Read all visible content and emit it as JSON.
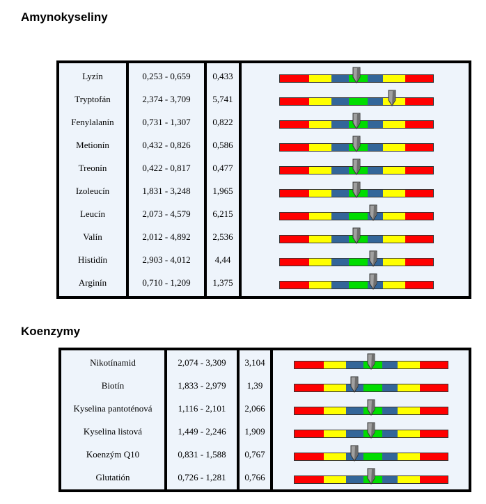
{
  "sections": [
    {
      "title": "Amynokyseliny",
      "rows": [
        {
          "name": "Lyzín",
          "range": "0,253 - 0,659",
          "value": "0,433",
          "marker_pos": 0.5
        },
        {
          "name": "Tryptofán",
          "range": "2,374 - 3,709",
          "value": "5,741",
          "marker_pos": 0.73
        },
        {
          "name": "Fenylalanín",
          "range": "0,731 - 1,307",
          "value": "0,822",
          "marker_pos": 0.5
        },
        {
          "name": "Metionín",
          "range": "0,432 - 0,826",
          "value": "0,586",
          "marker_pos": 0.5
        },
        {
          "name": "Treonín",
          "range": "0,422 - 0,817",
          "value": "0,477",
          "marker_pos": 0.5
        },
        {
          "name": "Izoleucín",
          "range": "1,831 - 3,248",
          "value": "1,965",
          "marker_pos": 0.5
        },
        {
          "name": "Leucín",
          "range": "2,073 - 4,579",
          "value": "6,215",
          "marker_pos": 0.61
        },
        {
          "name": "Valín",
          "range": "2,012 - 4,892",
          "value": "2,536",
          "marker_pos": 0.5
        },
        {
          "name": "Histidín",
          "range": "2,903 - 4,012",
          "value": "4,44",
          "marker_pos": 0.61
        },
        {
          "name": "Arginín",
          "range": "0,710 - 1,209",
          "value": "1,375",
          "marker_pos": 0.61
        }
      ]
    },
    {
      "title": "Koenzymy",
      "rows": [
        {
          "name": "Nikotínamid",
          "range": "2,074 - 3,309",
          "value": "3,104",
          "marker_pos": 0.5
        },
        {
          "name": "Biotín",
          "range": "1,833 - 2,979",
          "value": "1,39",
          "marker_pos": 0.39
        },
        {
          "name": "Kyselina pantoténová",
          "range": "1,116 - 2,101",
          "value": "2,066",
          "marker_pos": 0.5
        },
        {
          "name": "Kyselina listová",
          "range": "1,449 - 2,246",
          "value": "1,909",
          "marker_pos": 0.5
        },
        {
          "name": "Koenzým Q10",
          "range": "0,831 - 1,588",
          "value": "0,767",
          "marker_pos": 0.39
        },
        {
          "name": "Glutatión",
          "range": "0,726 - 1,281",
          "value": "0,766",
          "marker_pos": 0.5
        }
      ]
    }
  ],
  "colors": {
    "cell_background": "#eef4fb",
    "border": "#000000",
    "bar_segments": [
      "#ff0000",
      "#ffff00",
      "#336699",
      "#00dd00",
      "#336699",
      "#ffff00",
      "#ff0000"
    ],
    "marker": "#a0a0a0"
  },
  "icons": {
    "marker": "down-arrow-marker-icon"
  }
}
